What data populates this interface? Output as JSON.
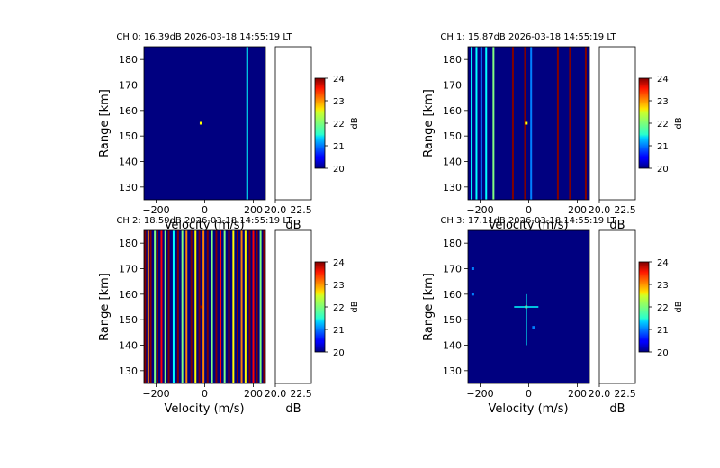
{
  "figure": {
    "panels": [
      {
        "id": "ch0",
        "title": "CH 0: 16.39dB 2026-03-18 14:55:19 LT",
        "xlabel": "Velocity (m/s)",
        "ylabel": "Range [km]",
        "side_xlabel": "dB",
        "cb_label": "dB"
      },
      {
        "id": "ch1",
        "title": "CH 1: 15.87dB 2026-03-18 14:55:19 LT",
        "xlabel": "Velocity (m/s)",
        "ylabel": "Range [km]",
        "side_xlabel": "dB",
        "cb_label": "dB"
      },
      {
        "id": "ch2",
        "title": "CH 2: 18.59dB 2026-03-18 14:55:19 LT",
        "xlabel": "Velocity (m/s)",
        "ylabel": "Range [km]",
        "side_xlabel": "dB",
        "cb_label": "dB"
      },
      {
        "id": "ch3",
        "title": "CH 3: 17.11dB 2026-03-18 14:55:19 LT",
        "xlabel": "Velocity (m/s)",
        "ylabel": "Range [km]",
        "side_xlabel": "dB",
        "cb_label": "dB"
      }
    ],
    "x_ticks": [
      "−200",
      "0",
      "200"
    ],
    "y_ticks": [
      "130",
      "140",
      "150",
      "160",
      "170",
      "180"
    ],
    "side_ticks": [
      "20.0",
      "22.5"
    ],
    "cb_ticks": [
      "20",
      "21",
      "22",
      "23",
      "24"
    ]
  },
  "chart_data": [
    {
      "type": "heatmap",
      "title": "CH 0: 16.39dB 2026-03-18 14:55:19 LT",
      "xlabel": "Velocity (m/s)",
      "ylabel": "Range [km]",
      "xlim": [
        -250,
        250
      ],
      "ylim": [
        125,
        185
      ],
      "colorbar": {
        "label": "dB",
        "range": [
          20,
          24
        ],
        "colormap": "jet"
      },
      "background_db": 20,
      "features": [
        {
          "kind": "vertical_stripe",
          "velocity": 175,
          "db": 21.5
        },
        {
          "kind": "point",
          "velocity": -15,
          "range": 155,
          "db": 22.5
        }
      ],
      "side_panel": {
        "xlabel": "dB",
        "xlim": [
          20.0,
          23.5
        ],
        "vline": 22.5
      }
    },
    {
      "type": "heatmap",
      "title": "CH 1: 15.87dB 2026-03-18 14:55:19 LT",
      "xlabel": "Velocity (m/s)",
      "ylabel": "Range [km]",
      "xlim": [
        -250,
        250
      ],
      "ylim": [
        125,
        185
      ],
      "colorbar": {
        "label": "dB",
        "range": [
          20,
          24
        ],
        "colormap": "jet"
      },
      "background_db": 20,
      "features": [
        {
          "kind": "vertical_stripe",
          "velocity": -235,
          "db": 21.5
        },
        {
          "kind": "vertical_stripe",
          "velocity": -215,
          "db": 21.5
        },
        {
          "kind": "vertical_stripe",
          "velocity": -195,
          "db": 21
        },
        {
          "kind": "vertical_stripe",
          "velocity": -175,
          "db": 21.5
        },
        {
          "kind": "vertical_stripe",
          "velocity": -145,
          "db": 22
        },
        {
          "kind": "vertical_stripe",
          "velocity": -65,
          "db": 24
        },
        {
          "kind": "vertical_stripe",
          "velocity": -15,
          "db": 24
        },
        {
          "kind": "vertical_stripe",
          "velocity": 10,
          "db": 21
        },
        {
          "kind": "vertical_stripe",
          "velocity": 120,
          "db": 24
        },
        {
          "kind": "vertical_stripe",
          "velocity": 170,
          "db": 24
        },
        {
          "kind": "vertical_stripe",
          "velocity": 235,
          "db": 24
        },
        {
          "kind": "point",
          "velocity": -10,
          "range": 155,
          "db": 22.5
        }
      ],
      "side_panel": {
        "xlabel": "dB",
        "xlim": [
          20.0,
          23.5
        ],
        "vline": 22.5
      }
    },
    {
      "type": "heatmap",
      "title": "CH 2: 18.59dB 2026-03-18 14:55:19 LT",
      "xlabel": "Velocity (m/s)",
      "ylabel": "Range [km]",
      "xlim": [
        -250,
        250
      ],
      "ylim": [
        125,
        185
      ],
      "colorbar": {
        "label": "dB",
        "range": [
          20,
          24
        ],
        "colormap": "jet"
      },
      "background_db": 20,
      "features": [
        {
          "kind": "vertical_stripe",
          "velocity": -245,
          "db": 24
        },
        {
          "kind": "vertical_stripe",
          "velocity": -232,
          "db": 23
        },
        {
          "kind": "vertical_stripe",
          "velocity": -222,
          "db": 24
        },
        {
          "kind": "vertical_stripe",
          "velocity": -205,
          "db": 22
        },
        {
          "kind": "vertical_stripe",
          "velocity": -195,
          "db": 24
        },
        {
          "kind": "vertical_stripe",
          "velocity": -178,
          "db": 23.5
        },
        {
          "kind": "vertical_stripe",
          "velocity": -162,
          "db": 22
        },
        {
          "kind": "vertical_stripe",
          "velocity": -148,
          "db": 24
        },
        {
          "kind": "vertical_stripe",
          "velocity": -128,
          "db": 21.5
        },
        {
          "kind": "vertical_stripe",
          "velocity": -110,
          "db": 24
        },
        {
          "kind": "vertical_stripe",
          "velocity": -92,
          "db": 22
        },
        {
          "kind": "vertical_stripe",
          "velocity": -75,
          "db": 23
        },
        {
          "kind": "vertical_stripe",
          "velocity": -55,
          "db": 24
        },
        {
          "kind": "vertical_stripe",
          "velocity": -38,
          "db": 22.5
        },
        {
          "kind": "vertical_stripe",
          "velocity": -22,
          "db": 24
        },
        {
          "kind": "vertical_stripe",
          "velocity": -5,
          "db": 23
        },
        {
          "kind": "vertical_stripe",
          "velocity": 12,
          "db": 24
        },
        {
          "kind": "vertical_stripe",
          "velocity": 30,
          "db": 22
        },
        {
          "kind": "vertical_stripe",
          "velocity": 48,
          "db": 24
        },
        {
          "kind": "vertical_stripe",
          "velocity": 65,
          "db": 23.5
        },
        {
          "kind": "vertical_stripe",
          "velocity": 82,
          "db": 22
        },
        {
          "kind": "vertical_stripe",
          "velocity": 100,
          "db": 24
        },
        {
          "kind": "vertical_stripe",
          "velocity": 118,
          "db": 22.5
        },
        {
          "kind": "vertical_stripe",
          "velocity": 135,
          "db": 24
        },
        {
          "kind": "vertical_stripe",
          "velocity": 152,
          "db": 23
        },
        {
          "kind": "vertical_stripe",
          "velocity": 168,
          "db": 22.5
        },
        {
          "kind": "vertical_stripe",
          "velocity": 185,
          "db": 24
        },
        {
          "kind": "vertical_stripe",
          "velocity": 200,
          "db": 23.5
        },
        {
          "kind": "vertical_stripe",
          "velocity": 215,
          "db": 24
        },
        {
          "kind": "vertical_stripe",
          "velocity": 230,
          "db": 22
        },
        {
          "kind": "vertical_stripe",
          "velocity": 244,
          "db": 24
        },
        {
          "kind": "point",
          "velocity": -15,
          "range": 155,
          "db": 24
        }
      ],
      "side_panel": {
        "xlabel": "dB",
        "xlim": [
          20.0,
          23.5
        ],
        "vline": 22.5
      }
    },
    {
      "type": "heatmap",
      "title": "CH 3: 17.11dB 2026-03-18 14:55:19 LT",
      "xlabel": "Velocity (m/s)",
      "ylabel": "Range [km]",
      "xlim": [
        -250,
        250
      ],
      "ylim": [
        125,
        185
      ],
      "colorbar": {
        "label": "dB",
        "range": [
          20,
          24
        ],
        "colormap": "jet"
      },
      "background_db": 20,
      "features": [
        {
          "kind": "point",
          "velocity": -10,
          "range": 155,
          "db": 23
        },
        {
          "kind": "hline_segment",
          "velocity_from": -60,
          "velocity_to": 40,
          "range": 155,
          "db": 21.5
        },
        {
          "kind": "vline_segment",
          "velocity": -10,
          "range_from": 140,
          "range_to": 160,
          "db": 21.5
        },
        {
          "kind": "point",
          "velocity": 20,
          "range": 147,
          "db": 21
        },
        {
          "kind": "point",
          "velocity": -230,
          "range": 170,
          "db": 21
        },
        {
          "kind": "point",
          "velocity": -230,
          "range": 160,
          "db": 21
        }
      ],
      "side_panel": {
        "xlabel": "dB",
        "xlim": [
          20.0,
          23.5
        ],
        "vline": 22.5
      }
    }
  ]
}
